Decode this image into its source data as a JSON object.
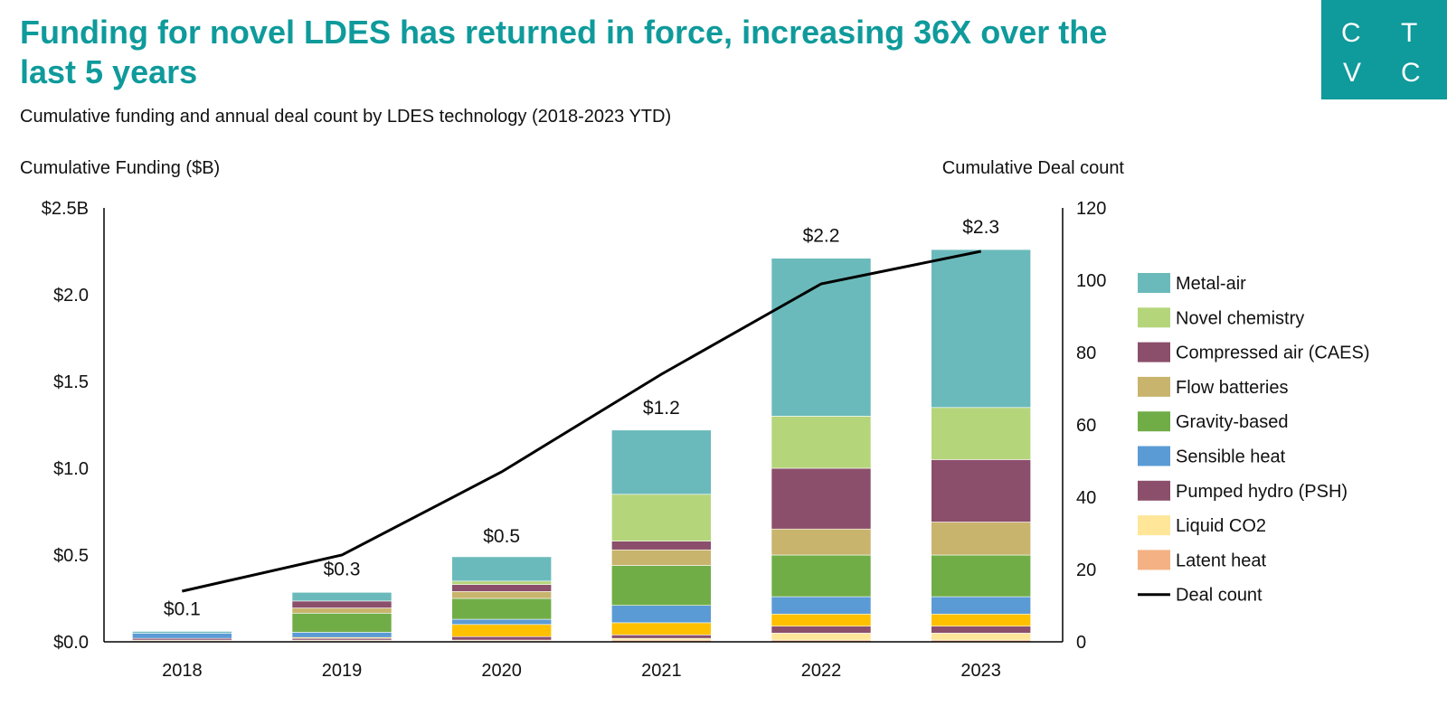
{
  "header": {
    "title": "Funding for novel LDES has returned in force, increasing 36X over the last 5 years",
    "subtitle": "Cumulative funding and annual deal count by LDES technology (2018-2023 YTD)",
    "logo": [
      "C",
      "T",
      "V",
      "C"
    ]
  },
  "chart_data": {
    "type": "bar",
    "stacked": true,
    "categories": [
      "2018",
      "2019",
      "2020",
      "2021",
      "2022",
      "2023"
    ],
    "ylabel": "Cumulative Funding ($B)",
    "y2label": "Cumulative Deal count",
    "ylim": [
      0,
      2.5
    ],
    "y2lim": [
      0,
      120
    ],
    "yticks": [
      "$0.0",
      "$0.5",
      "$1.0",
      "$1.5",
      "$2.0",
      "$2.5B"
    ],
    "y2ticks": [
      "0",
      "20",
      "40",
      "60",
      "80",
      "100",
      "120"
    ],
    "totals_labels": [
      "$0.1",
      "$0.3",
      "$0.5",
      "$1.2",
      "$2.2",
      "$2.3"
    ],
    "totals": [
      0.06,
      0.29,
      0.48,
      1.22,
      2.21,
      2.26
    ],
    "legend_position": "right",
    "grid": false,
    "series": [
      {
        "name": "Latent heat",
        "color": "#f4b183",
        "values": [
          0.005,
          0.005,
          0.005,
          0.01,
          0.01,
          0.01
        ]
      },
      {
        "name": "Liquid CO2",
        "color": "#ffe699",
        "values": [
          0.005,
          0.005,
          0.005,
          0.01,
          0.04,
          0.04
        ]
      },
      {
        "name": "Pumped hydro (PSH)",
        "color": "#8b4f6b",
        "values": [
          0.01,
          0.01,
          0.02,
          0.02,
          0.04,
          0.04
        ]
      },
      {
        "color": "#ffc000",
        "values": [
          0.0,
          0.005,
          0.07,
          0.07,
          0.07,
          0.07
        ]
      },
      {
        "name": "Sensible heat",
        "color": "#5b9bd5",
        "values": [
          0.03,
          0.03,
          0.03,
          0.1,
          0.1,
          0.1
        ]
      },
      {
        "name": "Gravity-based",
        "color": "#70ad47",
        "values": [
          0.0,
          0.11,
          0.12,
          0.23,
          0.24,
          0.24
        ]
      },
      {
        "name": "Flow batteries",
        "color": "#c9b46e",
        "values": [
          0.0,
          0.03,
          0.04,
          0.09,
          0.15,
          0.19
        ]
      },
      {
        "name": "Compressed air (CAES)",
        "color": "#8b4f6b",
        "values": [
          0.0,
          0.04,
          0.04,
          0.05,
          0.35,
          0.36
        ]
      },
      {
        "name": "Novel chemistry",
        "color": "#b5d57b",
        "values": [
          0.0,
          0.0,
          0.02,
          0.27,
          0.3,
          0.3
        ]
      },
      {
        "name": "Metal-air",
        "color": "#6bbabb",
        "values": [
          0.01,
          0.05,
          0.14,
          0.37,
          0.91,
          0.91
        ]
      }
    ],
    "line": {
      "name": "Deal count",
      "color": "#000000",
      "axis": "right",
      "values": [
        14,
        24,
        47,
        74,
        99,
        108
      ]
    }
  }
}
